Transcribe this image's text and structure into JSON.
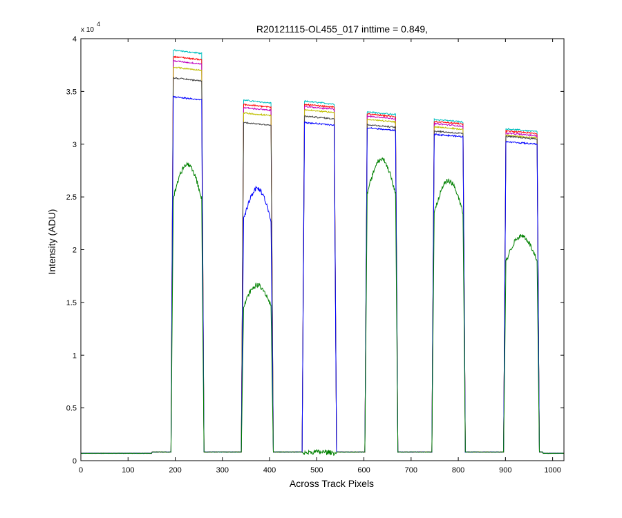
{
  "chart_data": {
    "type": "line",
    "title": "R20121115-OL455_017 inttime = 0.849,",
    "xlabel": "Across Track Pixels",
    "ylabel": "Intensity (ADU)",
    "y_exponent_label": "x 10",
    "y_exponent_power": "4",
    "xlim": [
      0,
      1024
    ],
    "ylim": [
      0,
      40000
    ],
    "xticks": [
      0,
      100,
      200,
      300,
      400,
      500,
      600,
      700,
      800,
      900,
      1000
    ],
    "xtick_labels": [
      "0",
      "100",
      "200",
      "300",
      "400",
      "500",
      "600",
      "700",
      "800",
      "900",
      "1000"
    ],
    "yticks": [
      0,
      5000,
      10000,
      15000,
      20000,
      25000,
      30000,
      35000,
      40000
    ],
    "ytick_labels": [
      "0",
      "0.5",
      "1",
      "1.5",
      "2",
      "2.5",
      "3",
      "3.5",
      "4"
    ],
    "grid": false,
    "baseline_adu": 700,
    "bands": [
      {
        "start": 196,
        "end": 256
      },
      {
        "start": 345,
        "end": 403
      },
      {
        "start": 474,
        "end": 537
      },
      {
        "start": 607,
        "end": 667
      },
      {
        "start": 749,
        "end": 810
      },
      {
        "start": 901,
        "end": 967
      }
    ],
    "series": [
      {
        "name": "cyan",
        "color": "#00BFBF",
        "plateaus": [
          38600,
          33900,
          33800,
          32800,
          32100,
          31200
        ]
      },
      {
        "name": "red",
        "color": "#FF0000",
        "plateaus": [
          38000,
          33500,
          33500,
          32600,
          31900,
          31000
        ]
      },
      {
        "name": "magenta",
        "color": "#BF00BF",
        "plateaus": [
          37600,
          33200,
          33300,
          32400,
          31700,
          30800
        ]
      },
      {
        "name": "olive",
        "color": "#BFBF00",
        "plateaus": [
          37000,
          32700,
          33000,
          32100,
          31400,
          30600
        ]
      },
      {
        "name": "black",
        "color": "#404040",
        "plateaus": [
          36000,
          31800,
          32400,
          31600,
          31000,
          30500
        ]
      },
      {
        "name": "blue",
        "color": "#0000FF",
        "plateaus": [
          34200,
          24800,
          31800,
          31300,
          30700,
          30000
        ]
      },
      {
        "name": "green",
        "color": "#008000",
        "plateaus": [
          27000,
          16000,
          800,
          27500,
          25500,
          20500
        ]
      }
    ]
  }
}
